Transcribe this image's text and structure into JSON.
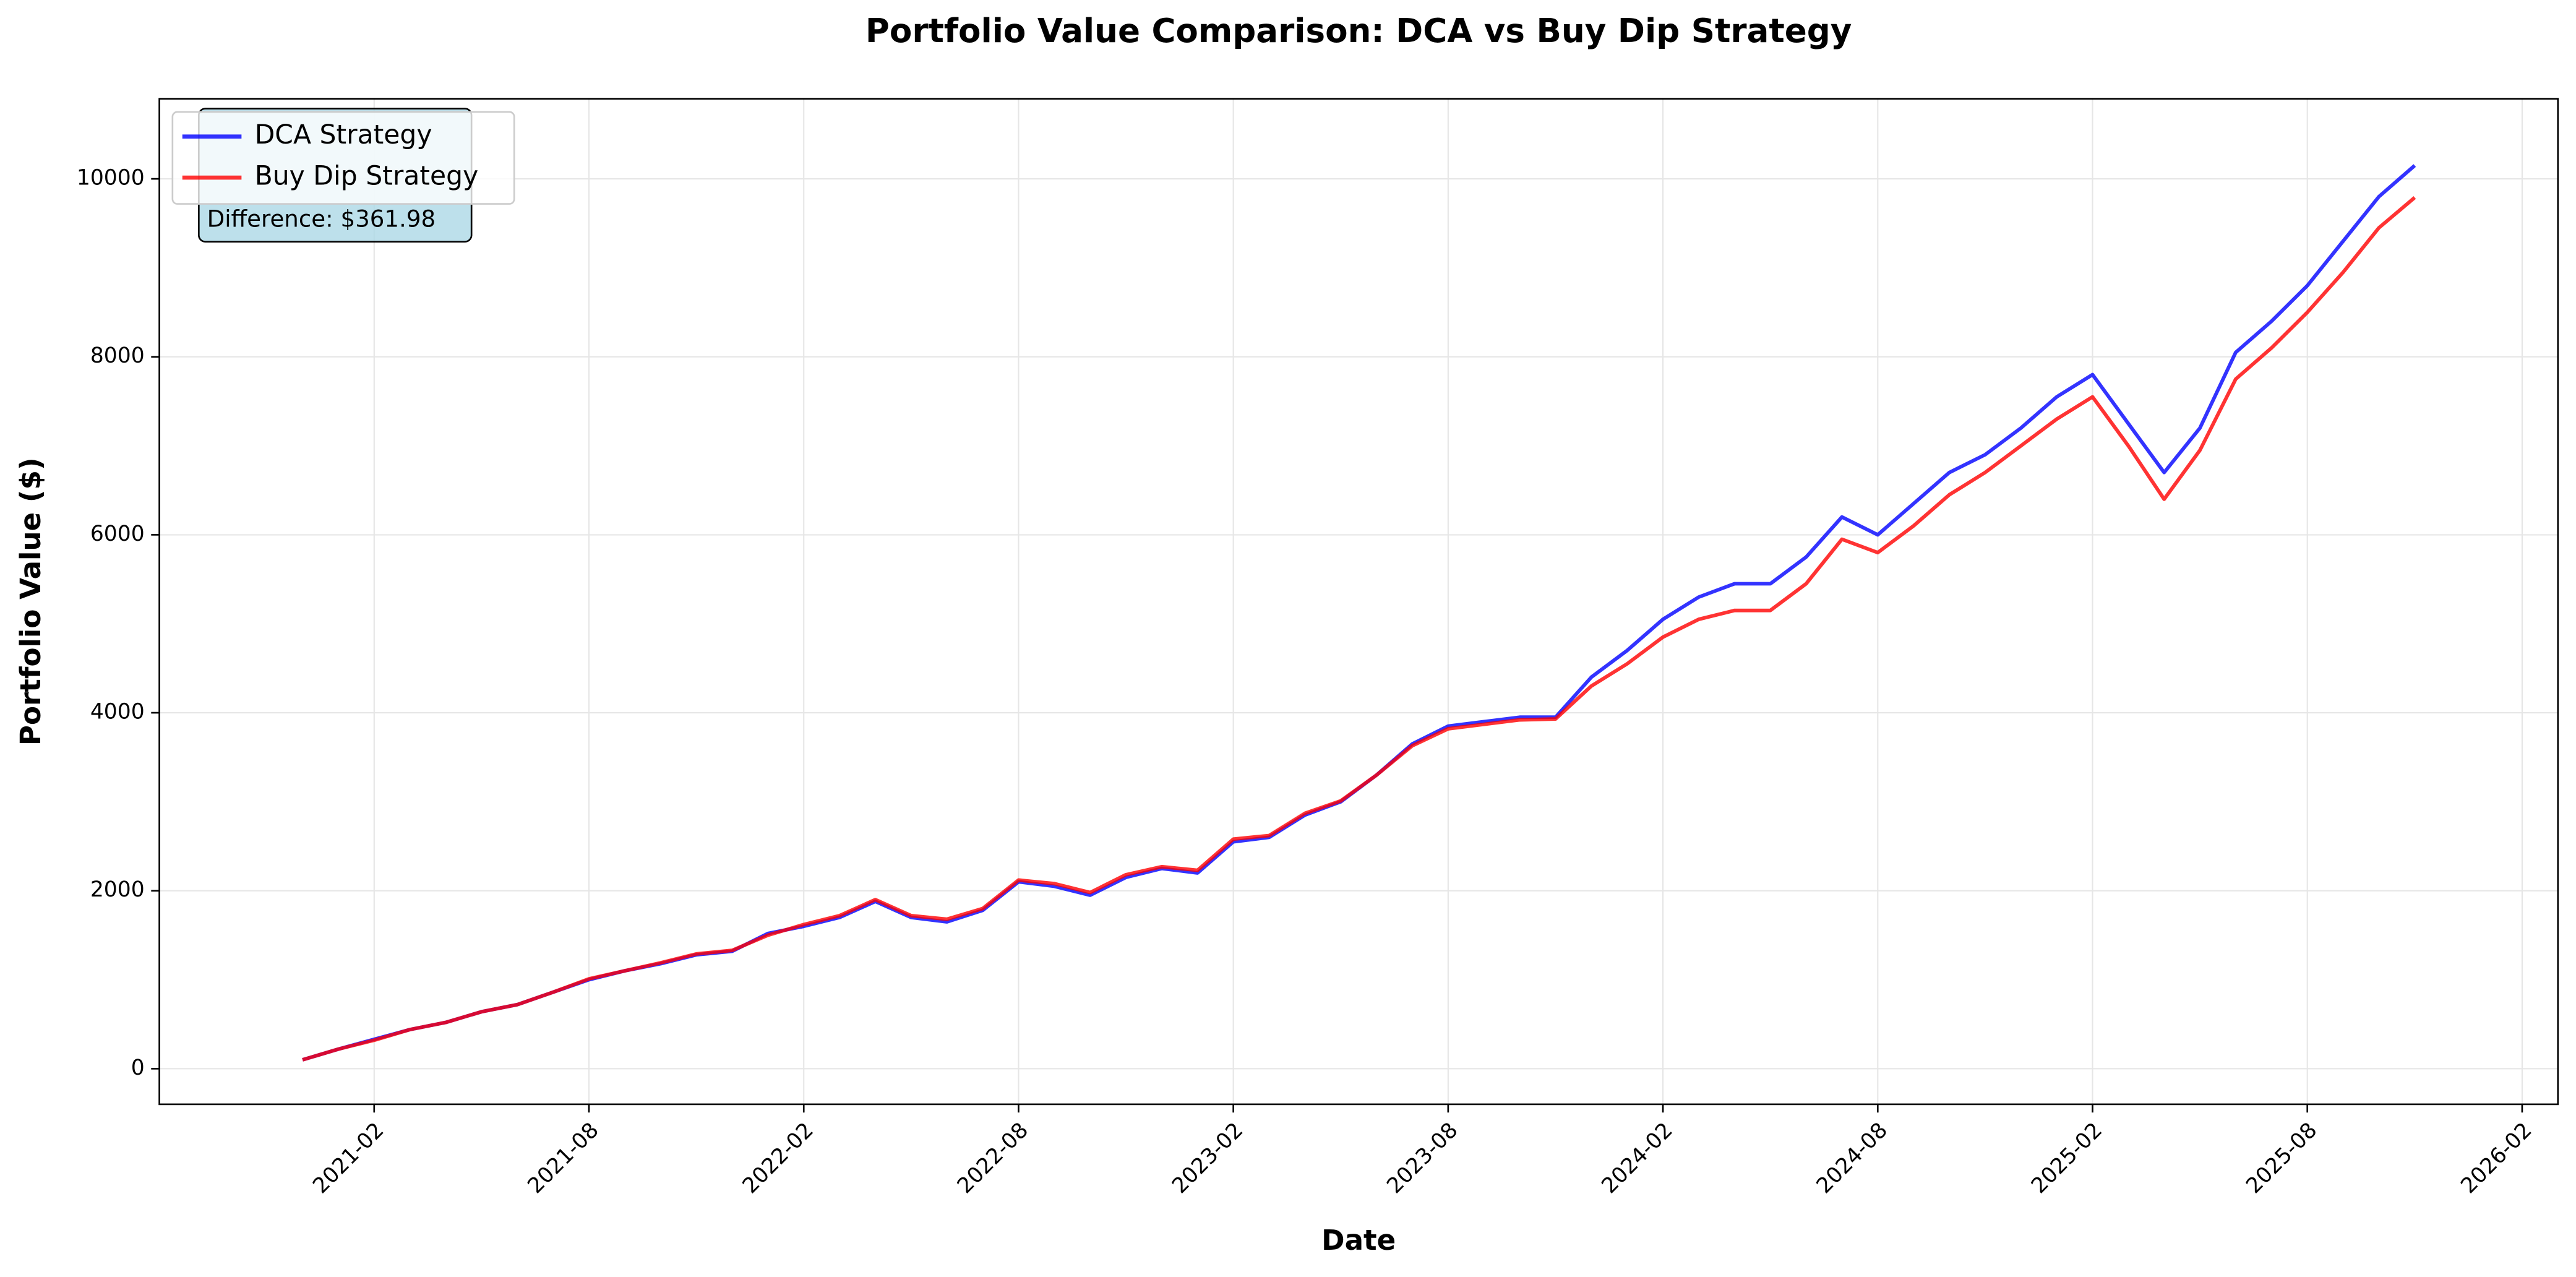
{
  "chart_data": {
    "type": "line",
    "title": "Portfolio Value Comparison: DCA vs Buy Dip Strategy",
    "xlabel": "Date",
    "ylabel": "Portfolio Value ($)",
    "annotation": "Difference: $361.98",
    "x": [
      "2020-12",
      "2021-01",
      "2021-02",
      "2021-03",
      "2021-04",
      "2021-05",
      "2021-06",
      "2021-07",
      "2021-08",
      "2021-09",
      "2021-10",
      "2021-11",
      "2021-12",
      "2022-01",
      "2022-02",
      "2022-03",
      "2022-04",
      "2022-05",
      "2022-06",
      "2022-07",
      "2022-08",
      "2022-09",
      "2022-10",
      "2022-11",
      "2022-12",
      "2023-01",
      "2023-02",
      "2023-03",
      "2023-04",
      "2023-05",
      "2023-06",
      "2023-07",
      "2023-08",
      "2023-09",
      "2023-10",
      "2023-11",
      "2023-12",
      "2024-01",
      "2024-02",
      "2024-03",
      "2024-04",
      "2024-05",
      "2024-06",
      "2024-07",
      "2024-08",
      "2024-09",
      "2024-10",
      "2024-11",
      "2024-12",
      "2025-01",
      "2025-02",
      "2025-03",
      "2025-04",
      "2025-05",
      "2025-06",
      "2025-07",
      "2025-08",
      "2025-09",
      "2025-10",
      "2025-11"
    ],
    "series": [
      {
        "name": "DCA Strategy",
        "color": "#0000ff",
        "values": [
          100,
          220,
          330,
          440,
          520,
          640,
          720,
          860,
          1000,
          1100,
          1180,
          1280,
          1320,
          1520,
          1600,
          1700,
          1880,
          1700,
          1650,
          1780,
          2100,
          2050,
          1950,
          2150,
          2250,
          2200,
          2550,
          2600,
          2850,
          3000,
          3300,
          3650,
          3850,
          3900,
          3950,
          3950,
          4400,
          4700,
          5050,
          5300,
          5450,
          5450,
          5750,
          6200,
          6000,
          6350,
          6700,
          6900,
          7200,
          7550,
          7800,
          7250,
          6700,
          7200,
          8050,
          8400,
          8800,
          9300,
          9800,
          10150
        ]
      },
      {
        "name": "Buy Dip Strategy",
        "color": "#ff0000",
        "values": [
          100,
          220,
          320,
          440,
          520,
          640,
          720,
          860,
          1010,
          1100,
          1190,
          1290,
          1330,
          1500,
          1620,
          1720,
          1900,
          1720,
          1680,
          1800,
          2120,
          2080,
          1980,
          2180,
          2270,
          2230,
          2580,
          2620,
          2870,
          3010,
          3300,
          3630,
          3820,
          3870,
          3920,
          3930,
          4300,
          4550,
          4850,
          5050,
          5150,
          5150,
          5450,
          5950,
          5800,
          6100,
          6450,
          6700,
          7000,
          7300,
          7550,
          7000,
          6400,
          6950,
          7750,
          8100,
          8500,
          8950,
          9450,
          9790
        ]
      }
    ],
    "xlim": [
      "2020-08",
      "2026-03"
    ],
    "xticks": [
      "2021-02",
      "2021-08",
      "2022-02",
      "2022-08",
      "2023-02",
      "2023-08",
      "2024-02",
      "2024-08",
      "2025-02",
      "2025-08",
      "2026-02"
    ],
    "ylim": [
      -400,
      10900
    ],
    "yticks": [
      0,
      2000,
      4000,
      6000,
      8000,
      10000
    ],
    "grid": true,
    "legend": "upper-left"
  }
}
